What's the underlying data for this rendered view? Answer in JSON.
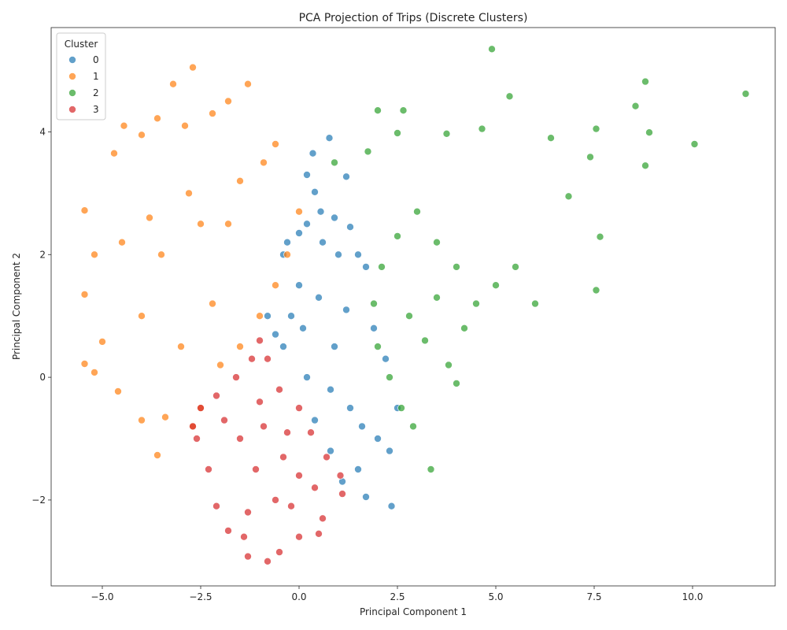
{
  "chart_data": {
    "type": "scatter",
    "title": "PCA Projection of Trips (Discrete Clusters)",
    "xlabel": "Principal Component 1",
    "ylabel": "Principal Component 2",
    "xlim": [
      -6.3,
      12.1
    ],
    "ylim": [
      -3.4,
      5.7
    ],
    "x_ticks": [
      -5.0,
      -2.5,
      0.0,
      2.5,
      5.0,
      7.5,
      10.0
    ],
    "x_tick_labels": [
      "−5.0",
      "−2.5",
      "0.0",
      "2.5",
      "5.0",
      "7.5",
      "10.0"
    ],
    "y_ticks": [
      -2,
      0,
      2,
      4
    ],
    "y_tick_labels": [
      "−2",
      "0",
      "2",
      "4"
    ],
    "grid": false,
    "legend": {
      "title": "Cluster",
      "placement": "top-left"
    },
    "series": [
      {
        "name": "0",
        "color": "#1f77b4",
        "points": [
          [
            0.77,
            3.9
          ],
          [
            0.35,
            3.65
          ],
          [
            1.2,
            3.27
          ],
          [
            0.2,
            3.3
          ],
          [
            0.4,
            3.02
          ],
          [
            0.55,
            2.7
          ],
          [
            0.9,
            2.6
          ],
          [
            1.3,
            2.45
          ],
          [
            0.2,
            2.5
          ],
          [
            0.0,
            2.35
          ],
          [
            -0.3,
            2.2
          ],
          [
            -0.4,
            2.0
          ],
          [
            0.6,
            2.2
          ],
          [
            1.0,
            2.0
          ],
          [
            1.5,
            2.0
          ],
          [
            1.7,
            1.8
          ],
          [
            -0.8,
            1.0
          ],
          [
            -0.6,
            0.7
          ],
          [
            -0.4,
            0.5
          ],
          [
            0.2,
            0.0
          ],
          [
            0.8,
            -0.2
          ],
          [
            1.3,
            -0.5
          ],
          [
            1.6,
            -0.8
          ],
          [
            2.0,
            -1.0
          ],
          [
            2.3,
            -1.2
          ],
          [
            1.5,
            -1.5
          ],
          [
            1.1,
            -1.7
          ],
          [
            1.7,
            -1.95
          ],
          [
            2.35,
            -2.1
          ],
          [
            0.8,
            -1.2
          ],
          [
            0.4,
            -0.7
          ],
          [
            2.5,
            -0.5
          ],
          [
            2.2,
            0.3
          ],
          [
            1.9,
            0.8
          ],
          [
            0.5,
            1.3
          ],
          [
            0.0,
            1.5
          ],
          [
            -0.2,
            1.0
          ],
          [
            1.2,
            1.1
          ],
          [
            0.9,
            0.5
          ],
          [
            0.1,
            0.8
          ]
        ]
      },
      {
        "name": "1",
        "color": "#ff7f0e",
        "points": [
          [
            -2.7,
            5.05
          ],
          [
            -3.2,
            4.78
          ],
          [
            -1.3,
            4.78
          ],
          [
            -1.8,
            4.5
          ],
          [
            -4.45,
            4.1
          ],
          [
            -2.9,
            4.1
          ],
          [
            -3.6,
            4.22
          ],
          [
            -0.6,
            3.8
          ],
          [
            -4.0,
            3.95
          ],
          [
            -2.2,
            4.3
          ],
          [
            -4.7,
            3.65
          ],
          [
            -5.45,
            2.72
          ],
          [
            -5.2,
            2.0
          ],
          [
            -5.45,
            1.35
          ],
          [
            -5.45,
            0.22
          ],
          [
            -5.2,
            0.08
          ],
          [
            -5.0,
            0.58
          ],
          [
            -4.6,
            -0.23
          ],
          [
            -4.0,
            -0.7
          ],
          [
            -3.6,
            -1.27
          ],
          [
            -3.4,
            -0.65
          ],
          [
            -2.7,
            -0.8
          ],
          [
            -2.5,
            -0.5
          ],
          [
            -2.0,
            0.2
          ],
          [
            -1.5,
            0.5
          ],
          [
            -1.0,
            1.0
          ],
          [
            -0.6,
            1.5
          ],
          [
            -0.3,
            2.0
          ],
          [
            0.0,
            2.7
          ],
          [
            -0.9,
            3.5
          ],
          [
            -1.5,
            3.2
          ],
          [
            -2.5,
            2.5
          ],
          [
            -3.5,
            2.0
          ],
          [
            -4.0,
            1.0
          ],
          [
            -3.0,
            0.5
          ],
          [
            -2.2,
            1.2
          ],
          [
            -1.8,
            2.5
          ],
          [
            -2.8,
            3.0
          ],
          [
            -3.8,
            2.6
          ],
          [
            -4.5,
            2.2
          ]
        ]
      },
      {
        "name": "2",
        "color": "#2ca02c",
        "points": [
          [
            4.9,
            5.35
          ],
          [
            5.35,
            4.58
          ],
          [
            8.8,
            4.82
          ],
          [
            11.35,
            4.62
          ],
          [
            8.55,
            4.42
          ],
          [
            7.55,
            4.05
          ],
          [
            8.9,
            3.99
          ],
          [
            10.05,
            3.8
          ],
          [
            8.8,
            3.45
          ],
          [
            7.4,
            3.59
          ],
          [
            6.85,
            2.95
          ],
          [
            7.65,
            2.29
          ],
          [
            7.55,
            1.42
          ],
          [
            2.0,
            4.35
          ],
          [
            2.65,
            4.35
          ],
          [
            3.75,
            3.97
          ],
          [
            4.65,
            4.05
          ],
          [
            6.4,
            3.9
          ],
          [
            1.75,
            3.68
          ],
          [
            0.9,
            3.5
          ],
          [
            2.5,
            3.98
          ],
          [
            3.35,
            -1.5
          ],
          [
            2.9,
            -0.8
          ],
          [
            2.6,
            -0.5
          ],
          [
            2.3,
            0.0
          ],
          [
            2.0,
            0.5
          ],
          [
            1.9,
            1.2
          ],
          [
            2.1,
            1.8
          ],
          [
            2.5,
            2.3
          ],
          [
            3.0,
            2.7
          ],
          [
            3.5,
            2.2
          ],
          [
            4.0,
            1.8
          ],
          [
            4.5,
            1.2
          ],
          [
            5.0,
            1.5
          ],
          [
            5.5,
            1.8
          ],
          [
            6.0,
            1.2
          ],
          [
            4.2,
            0.8
          ],
          [
            3.8,
            0.2
          ],
          [
            3.2,
            0.6
          ],
          [
            2.8,
            1.0
          ],
          [
            3.5,
            1.3
          ],
          [
            4.0,
            -0.1
          ]
        ]
      },
      {
        "name": "3",
        "color": "#d62728",
        "points": [
          [
            -1.0,
            0.6
          ],
          [
            -0.8,
            0.3
          ],
          [
            -0.5,
            -0.2
          ],
          [
            0.0,
            -0.5
          ],
          [
            0.3,
            -0.9
          ],
          [
            0.7,
            -1.3
          ],
          [
            1.05,
            -1.6
          ],
          [
            1.1,
            -1.9
          ],
          [
            0.6,
            -2.3
          ],
          [
            0.5,
            -2.55
          ],
          [
            0.0,
            -2.6
          ],
          [
            -0.5,
            -2.85
          ],
          [
            -0.8,
            -3.0
          ],
          [
            -1.3,
            -2.92
          ],
          [
            -1.4,
            -2.6
          ],
          [
            -1.8,
            -2.5
          ],
          [
            -2.1,
            -2.1
          ],
          [
            -2.3,
            -1.5
          ],
          [
            -2.6,
            -1.0
          ],
          [
            -2.7,
            -0.8
          ],
          [
            -2.5,
            -0.5
          ],
          [
            -2.1,
            -0.3
          ],
          [
            -1.6,
            0.0
          ],
          [
            -1.2,
            0.3
          ],
          [
            -0.9,
            -0.8
          ],
          [
            -0.4,
            -1.3
          ],
          [
            0.0,
            -1.6
          ],
          [
            -0.6,
            -2.0
          ],
          [
            -1.1,
            -1.5
          ],
          [
            -1.5,
            -1.0
          ],
          [
            -1.9,
            -0.7
          ],
          [
            -1.0,
            -0.4
          ],
          [
            -0.3,
            -0.9
          ],
          [
            -1.3,
            -2.2
          ],
          [
            -0.2,
            -2.1
          ],
          [
            0.4,
            -1.8
          ]
        ]
      }
    ]
  }
}
